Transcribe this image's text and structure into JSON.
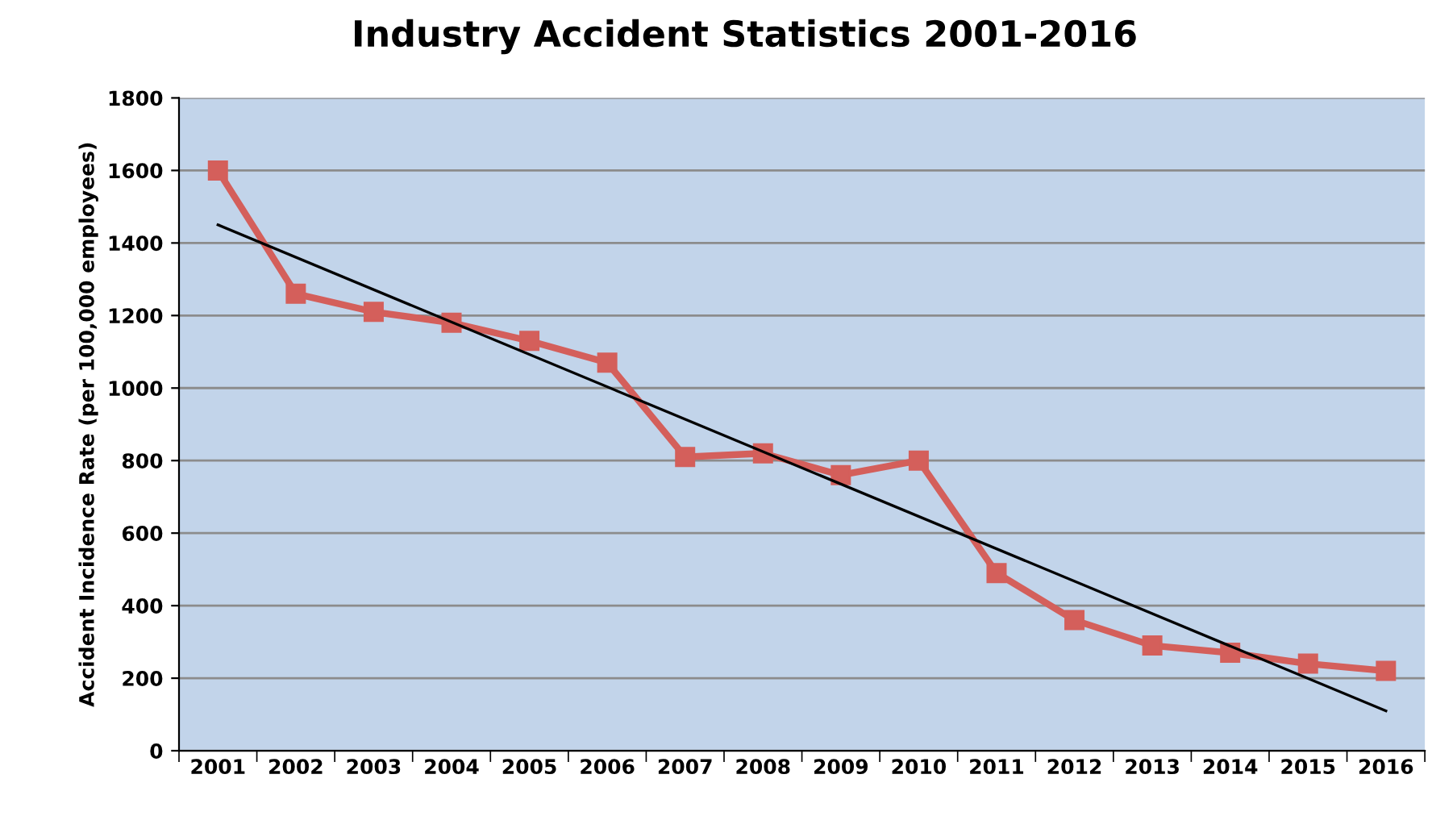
{
  "chart_data": {
    "type": "line",
    "title": "Industry Accident Statistics 2001-2016",
    "ylabel": "Accident Incidence Rate (per 100,000 employees)",
    "categories": [
      "2001",
      "2002",
      "2003",
      "2004",
      "2005",
      "2006",
      "2007",
      "2008",
      "2009",
      "2010",
      "2011",
      "2012",
      "2013",
      "2014",
      "2015",
      "2016"
    ],
    "series": [
      {
        "color": "#d45f5b",
        "marker": "square",
        "values": [
          1600,
          1260,
          1210,
          1180,
          1130,
          1070,
          810,
          820,
          760,
          800,
          490,
          360,
          290,
          270,
          240,
          220
        ]
      },
      {
        "color": "#000000",
        "marker": "none",
        "values": [
          1450,
          null,
          null,
          null,
          null,
          null,
          null,
          null,
          null,
          null,
          null,
          null,
          null,
          null,
          null,
          110
        ]
      }
    ],
    "ylim": [
      0,
      1800
    ],
    "yticks": [
      0,
      200,
      400,
      600,
      800,
      1000,
      1200,
      1400,
      1600,
      1800
    ],
    "grid": "y",
    "legend": false
  }
}
